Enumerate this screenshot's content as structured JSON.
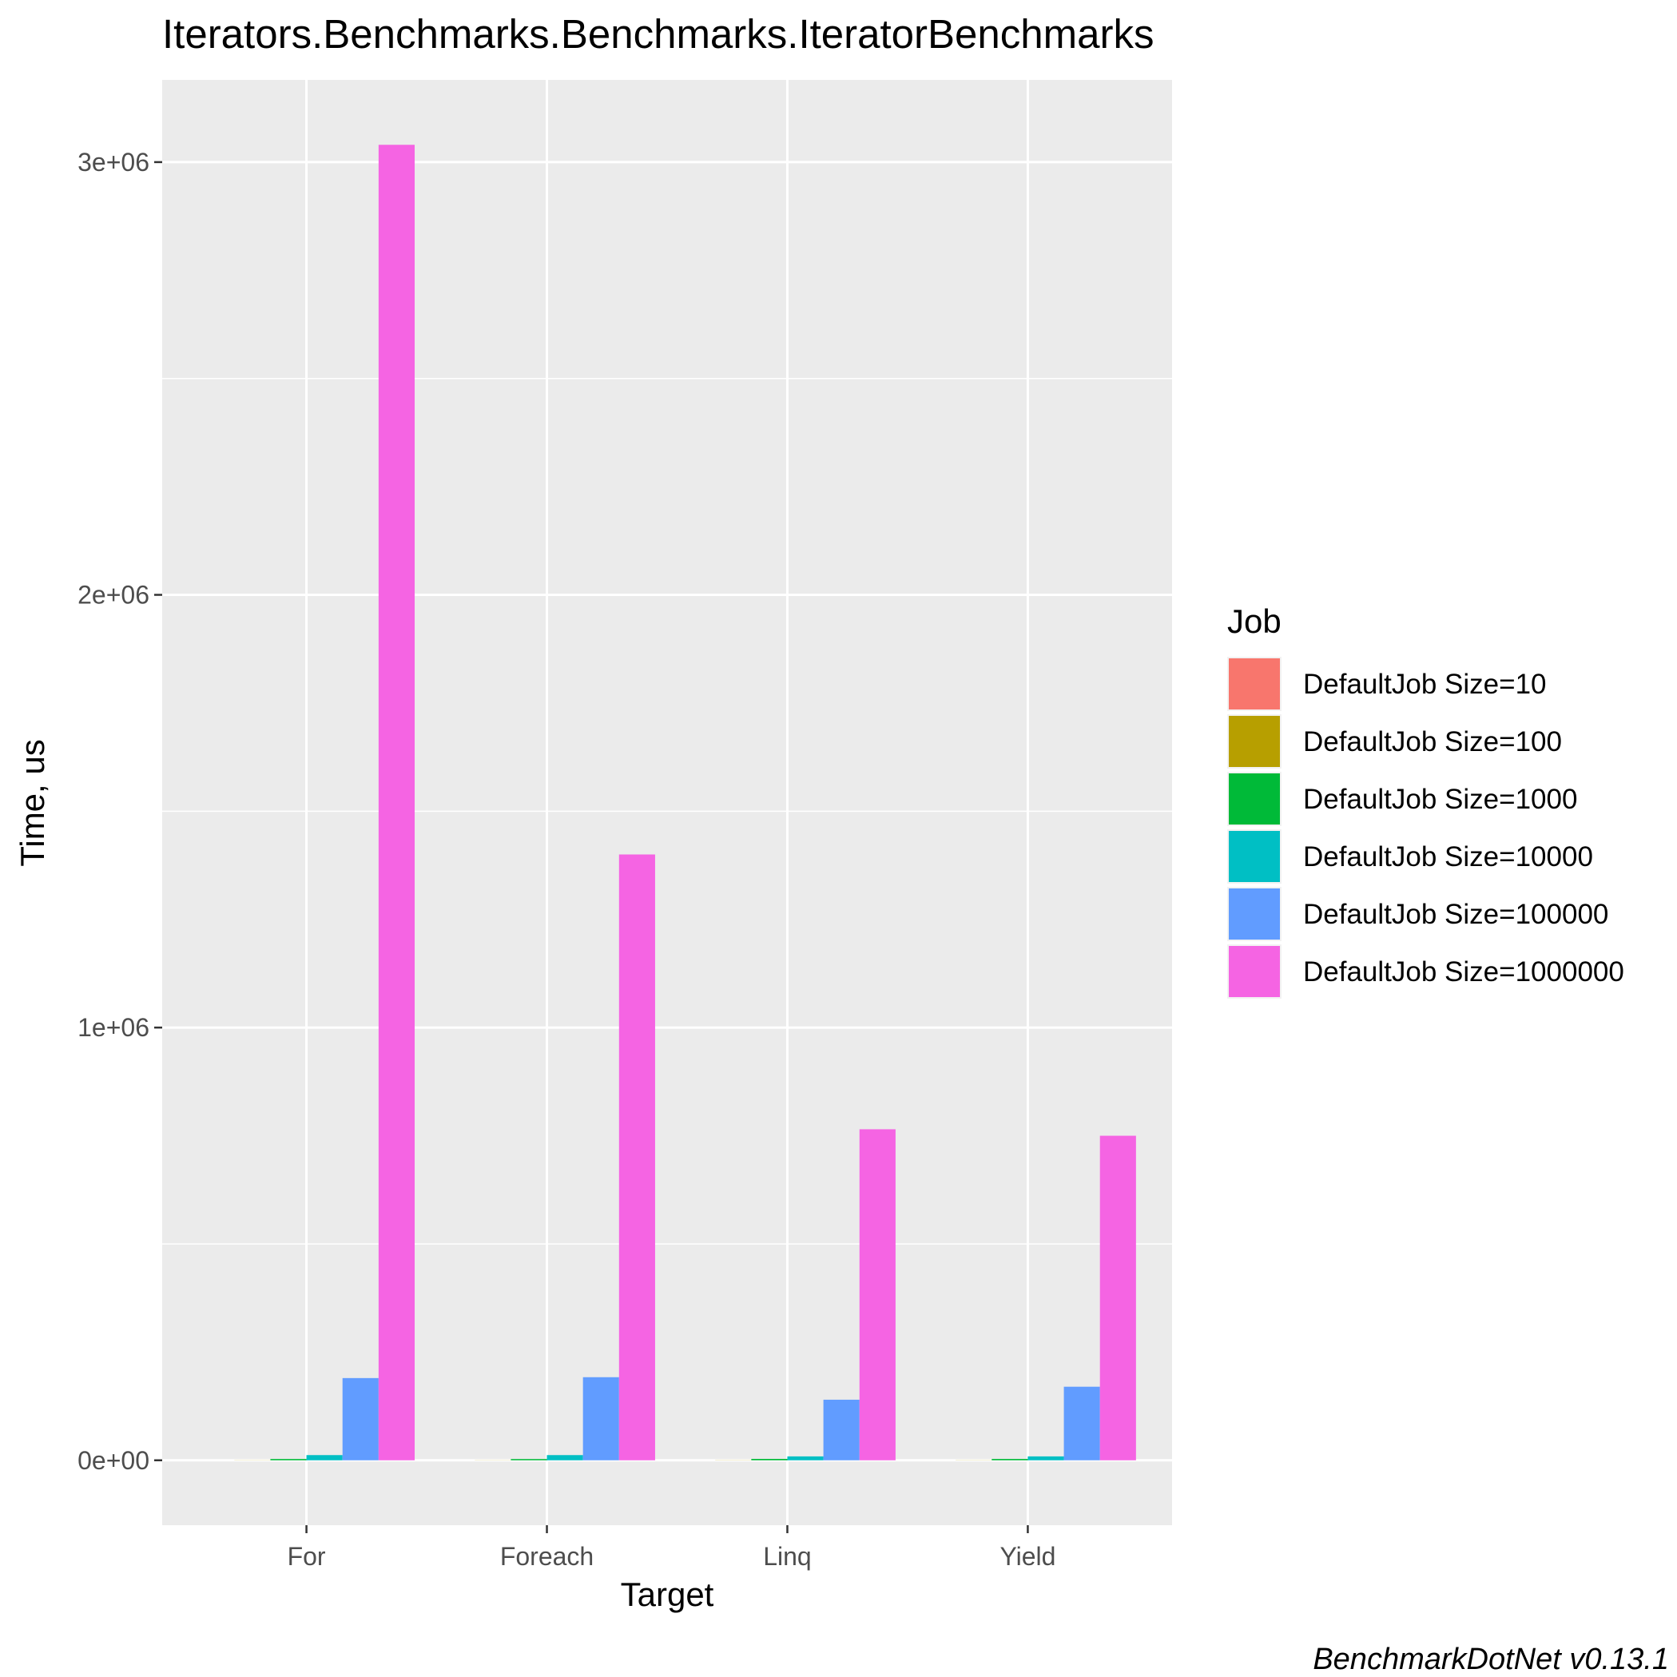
{
  "chart_data": {
    "type": "bar",
    "title": "Iterators.Benchmarks.Benchmarks.IteratorBenchmarks",
    "xlabel": "Target",
    "ylabel": "Time, us",
    "caption": "BenchmarkDotNet v0.13.1",
    "categories": [
      "For",
      "Foreach",
      "Linq",
      "Yield"
    ],
    "yticks": [
      0,
      1000000,
      2000000,
      3000000
    ],
    "ytick_labels": [
      "0e+00",
      "1e+06",
      "2e+06",
      "3e+06"
    ],
    "ylim": [
      -150000,
      3190000
    ],
    "grid": true,
    "legend": {
      "title": "Job",
      "position": "right"
    },
    "series": [
      {
        "name": "DefaultJob Size=10",
        "color": "#F8766D",
        "values": [
          30,
          28,
          35,
          32
        ]
      },
      {
        "name": "DefaultJob Size=100",
        "color": "#B79F00",
        "values": [
          300,
          280,
          350,
          320
        ]
      },
      {
        "name": "DefaultJob Size=1000",
        "color": "#00BA38",
        "values": [
          3000,
          2900,
          3200,
          3100
        ]
      },
      {
        "name": "DefaultJob Size=10000",
        "color": "#00BFC4",
        "values": [
          12000,
          12000,
          9000,
          9000
        ]
      },
      {
        "name": "DefaultJob Size=100000",
        "color": "#619CFF",
        "values": [
          190000,
          192000,
          140000,
          170000
        ]
      },
      {
        "name": "DefaultJob Size=1000000",
        "color": "#F564E3",
        "values": [
          3040000,
          1400000,
          765000,
          750000
        ]
      }
    ]
  }
}
